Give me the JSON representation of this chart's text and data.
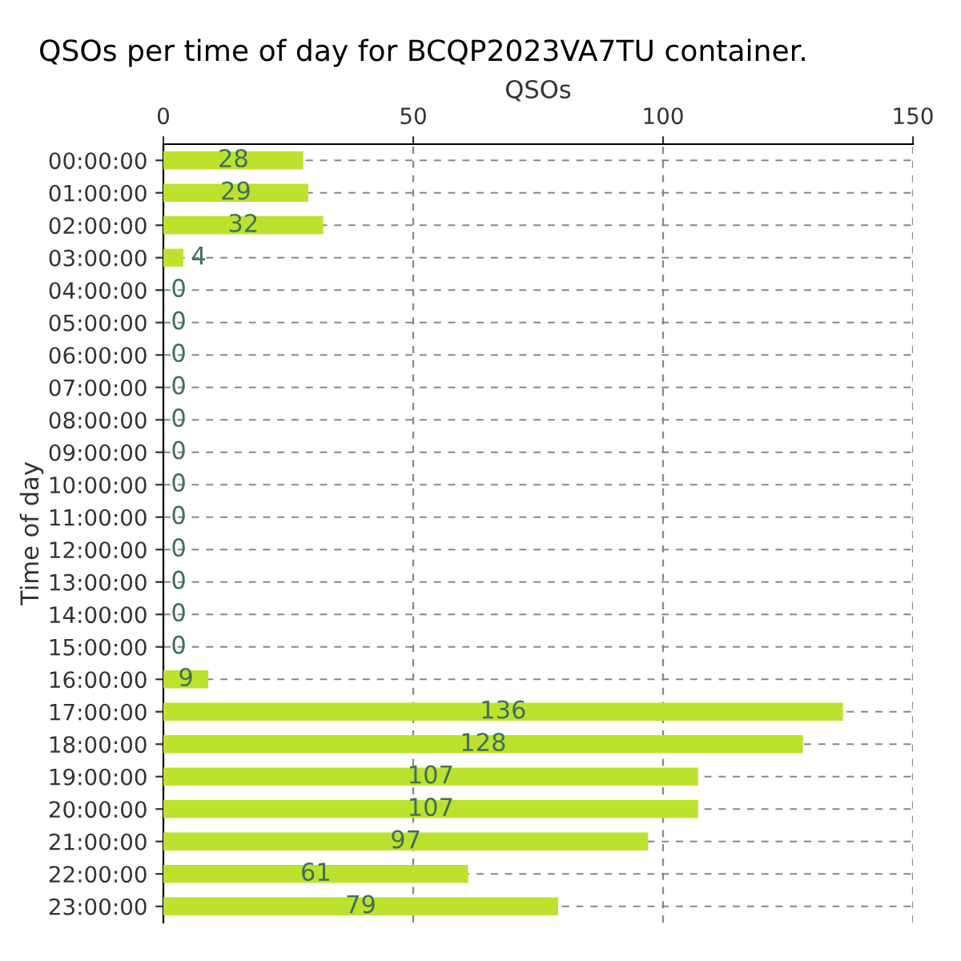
{
  "chart_data": {
    "type": "bar",
    "orientation": "horizontal",
    "title": "QSOs per time of day for BCQP2023VA7TU container.",
    "xlabel": "QSOs",
    "ylabel": "Time of day",
    "categories": [
      "00:00:00",
      "01:00:00",
      "02:00:00",
      "03:00:00",
      "04:00:00",
      "05:00:00",
      "06:00:00",
      "07:00:00",
      "08:00:00",
      "09:00:00",
      "10:00:00",
      "11:00:00",
      "12:00:00",
      "13:00:00",
      "14:00:00",
      "15:00:00",
      "16:00:00",
      "17:00:00",
      "18:00:00",
      "19:00:00",
      "20:00:00",
      "21:00:00",
      "22:00:00",
      "23:00:00"
    ],
    "values": [
      28,
      29,
      32,
      4,
      0,
      0,
      0,
      0,
      0,
      0,
      0,
      0,
      0,
      0,
      0,
      0,
      9,
      136,
      128,
      107,
      107,
      97,
      61,
      79
    ],
    "color": "#bde22d",
    "xlim": [
      0,
      150
    ],
    "xticks": [
      0,
      50,
      100,
      150
    ],
    "grid": true,
    "data_labels": true
  }
}
